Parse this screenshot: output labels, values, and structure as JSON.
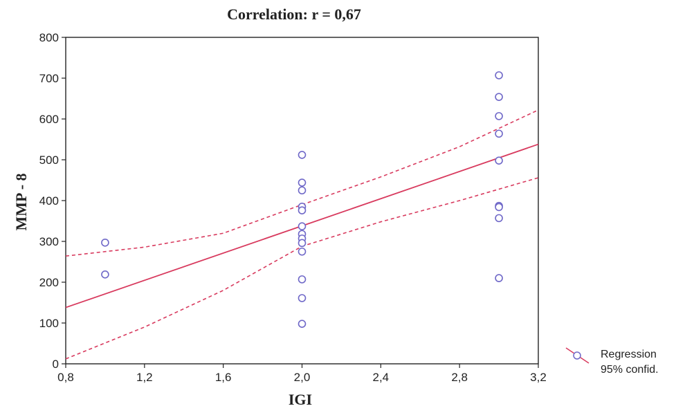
{
  "chart_data": {
    "type": "scatter",
    "title": "Correlation: r = 0,67",
    "xlabel": "IGI",
    "ylabel": "MMP - 8",
    "xlim": [
      0.8,
      3.2
    ],
    "ylim": [
      0,
      800
    ],
    "x_ticks": [
      0.8,
      1.2,
      1.6,
      2.0,
      2.4,
      2.8,
      3.2
    ],
    "x_tick_labels": [
      "0,8",
      "1,2",
      "1,6",
      "2,0",
      "2,4",
      "2,8",
      "3,2"
    ],
    "y_ticks": [
      0,
      100,
      200,
      300,
      400,
      500,
      600,
      700,
      800
    ],
    "y_tick_labels": [
      "0",
      "100",
      "200",
      "300",
      "400",
      "500",
      "600",
      "700",
      "800"
    ],
    "grid": false,
    "points": [
      {
        "x": 1.0,
        "y": 297
      },
      {
        "x": 1.0,
        "y": 219
      },
      {
        "x": 2.0,
        "y": 512
      },
      {
        "x": 2.0,
        "y": 444
      },
      {
        "x": 2.0,
        "y": 425
      },
      {
        "x": 2.0,
        "y": 385
      },
      {
        "x": 2.0,
        "y": 376
      },
      {
        "x": 2.0,
        "y": 337
      },
      {
        "x": 2.0,
        "y": 318
      },
      {
        "x": 2.0,
        "y": 307
      },
      {
        "x": 2.0,
        "y": 296
      },
      {
        "x": 2.0,
        "y": 275
      },
      {
        "x": 2.0,
        "y": 207
      },
      {
        "x": 2.0,
        "y": 161
      },
      {
        "x": 2.0,
        "y": 98
      },
      {
        "x": 3.0,
        "y": 707
      },
      {
        "x": 3.0,
        "y": 654
      },
      {
        "x": 3.0,
        "y": 607
      },
      {
        "x": 3.0,
        "y": 564
      },
      {
        "x": 3.0,
        "y": 498
      },
      {
        "x": 3.0,
        "y": 387
      },
      {
        "x": 3.0,
        "y": 384
      },
      {
        "x": 3.0,
        "y": 357
      },
      {
        "x": 3.0,
        "y": 210
      }
    ],
    "regression_line": [
      [
        0.8,
        138
      ],
      [
        3.2,
        538
      ]
    ],
    "confidence_upper": [
      [
        0.8,
        264
      ],
      [
        1.2,
        286
      ],
      [
        1.6,
        320
      ],
      [
        2.0,
        390
      ],
      [
        2.4,
        458
      ],
      [
        2.8,
        532
      ],
      [
        3.2,
        622
      ]
    ],
    "confidence_lower": [
      [
        0.8,
        12
      ],
      [
        1.2,
        90
      ],
      [
        1.6,
        180
      ],
      [
        2.0,
        288
      ],
      [
        2.4,
        348
      ],
      [
        2.8,
        400
      ],
      [
        3.2,
        456
      ]
    ],
    "legend": {
      "position": "bottom-right",
      "entries": [
        "Regression",
        "95% confid."
      ]
    },
    "colors": {
      "points": "#6f68c8",
      "regression": "#d83a5e",
      "confidence": "#d83a5e",
      "axis": "#222222"
    }
  }
}
